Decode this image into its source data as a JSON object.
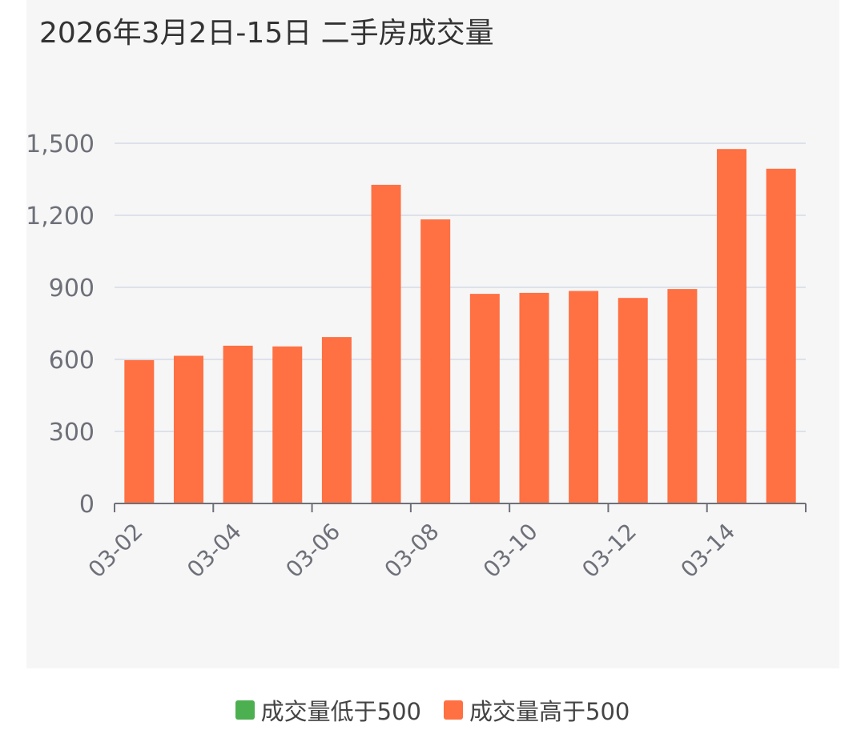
{
  "chart_data": {
    "type": "bar",
    "title": "2026年3月2日-15日 二手房成交量",
    "categories": [
      "03-02",
      "03-03",
      "03-04",
      "03-05",
      "03-06",
      "03-07",
      "03-08",
      "03-09",
      "03-10",
      "03-11",
      "03-12",
      "03-13",
      "03-14",
      "03-15"
    ],
    "x_tick_labels": [
      "03-02",
      "03-04",
      "03-06",
      "03-08",
      "03-10",
      "03-12",
      "03-14"
    ],
    "y_ticks": [
      0,
      300,
      600,
      900,
      1200,
      1500
    ],
    "y_tick_labels": [
      "0",
      "300",
      "600",
      "900",
      "1,200",
      "1,500"
    ],
    "ylim": [
      0,
      1500
    ],
    "series": [
      {
        "name": "成交量低于500",
        "color": "#4caf50",
        "values": [
          null,
          null,
          null,
          null,
          null,
          null,
          null,
          null,
          null,
          null,
          null,
          null,
          null,
          null
        ]
      },
      {
        "name": "成交量高于500",
        "color": "#ff7043",
        "values": [
          597,
          615,
          657,
          654,
          693,
          1327,
          1183,
          873,
          877,
          885,
          856,
          893,
          1476,
          1394
        ]
      }
    ],
    "grid": true,
    "legend_position": "bottom"
  }
}
